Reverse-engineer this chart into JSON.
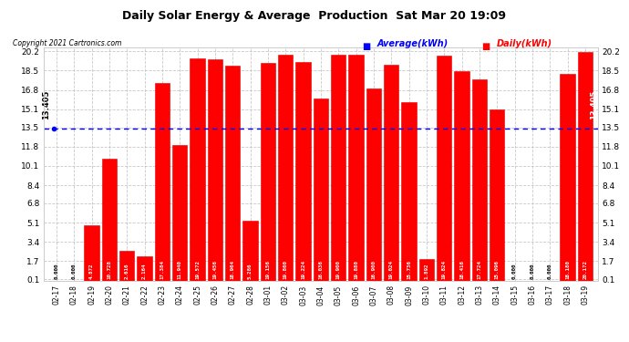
{
  "title": "Daily Solar Energy & Average  Production  Sat Mar 20 19:09",
  "copyright": "Copyright 2021 Cartronics.com",
  "categories": [
    "02-17",
    "02-18",
    "02-19",
    "02-20",
    "02-21",
    "02-22",
    "02-23",
    "02-24",
    "02-25",
    "02-26",
    "02-27",
    "02-28",
    "03-01",
    "03-02",
    "03-03",
    "03-04",
    "03-05",
    "03-06",
    "03-07",
    "03-08",
    "03-09",
    "03-10",
    "03-11",
    "03-12",
    "03-13",
    "03-14",
    "03-15",
    "03-16",
    "03-17",
    "03-18",
    "03-19"
  ],
  "values": [
    0.0,
    0.0,
    4.872,
    10.728,
    2.616,
    2.164,
    17.384,
    11.94,
    19.572,
    19.456,
    18.964,
    5.286,
    19.156,
    19.86,
    19.224,
    16.036,
    19.9,
    19.88,
    16.9,
    19.024,
    15.736,
    1.892,
    19.824,
    18.416,
    17.724,
    15.096,
    0.0,
    0.0,
    0.0,
    18.18,
    20.172
  ],
  "average": 13.405,
  "bar_color": "#ff0000",
  "avg_line_color": "#0000ff",
  "avg_label_color": "#0000ff",
  "daily_label_color": "#ff0000",
  "title_color": "#000000",
  "copyright_color": "#000000",
  "yticks": [
    0.1,
    1.7,
    3.4,
    5.1,
    6.8,
    8.4,
    10.1,
    11.8,
    13.5,
    15.1,
    16.8,
    18.5,
    20.2
  ],
  "ymin": 0.0,
  "ymax": 20.5,
  "bg_color": "#ffffff",
  "grid_color": "#bbbbbb",
  "bar_edge_color": "#dd0000",
  "figsize": [
    6.9,
    3.75
  ],
  "dpi": 100
}
